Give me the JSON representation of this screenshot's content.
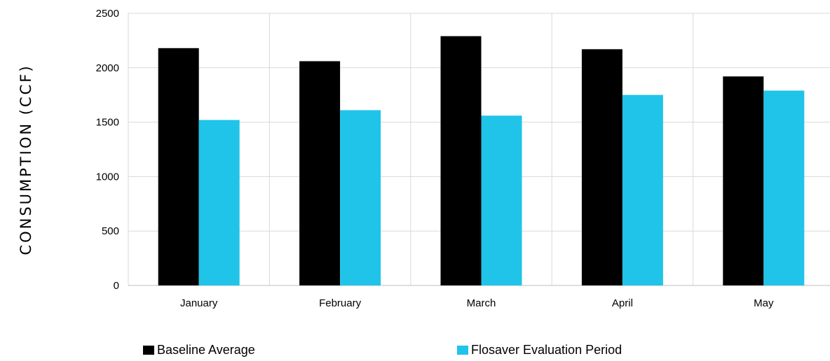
{
  "chart_data": {
    "type": "bar",
    "title": "",
    "xlabel": "",
    "ylabel": "CONSUMPTION (CCF)",
    "categories": [
      "January",
      "February",
      "March",
      "April",
      "May"
    ],
    "series": [
      {
        "name": "Baseline Average",
        "color": "#000000",
        "values": [
          2180,
          2060,
          2290,
          2170,
          1920
        ]
      },
      {
        "name": "Flosaver Evaluation Period",
        "color": "#20C4E8",
        "values": [
          1520,
          1610,
          1560,
          1750,
          1790
        ]
      }
    ],
    "ylim": [
      0,
      2500
    ],
    "yticks": [
      0,
      500,
      1000,
      1500,
      2000,
      2500
    ],
    "grid": true,
    "legend_position": "bottom"
  }
}
